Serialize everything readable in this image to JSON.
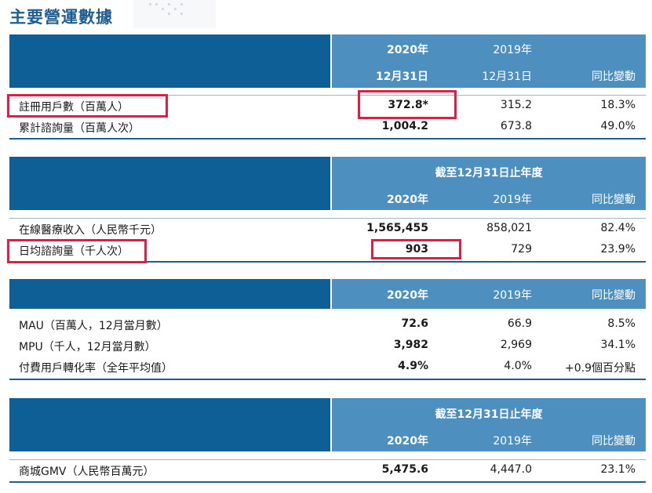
{
  "title": "主要營運數據",
  "colors": {
    "header_dark": "#0d5f95",
    "header_light": "#4d8fbf",
    "title": "#1f5e94",
    "highlight": "#e01e45"
  },
  "table1": {
    "header": {
      "y2020_year": "2020年",
      "y2019_year": "2019年",
      "y2020_date": "12月31日",
      "y2019_date": "12月31日",
      "yoy": "同比變動"
    },
    "rows": [
      {
        "label": "註冊用戶數（百萬人）",
        "v2020": "372.8*",
        "v2019": "315.2",
        "yoy": "18.3%"
      },
      {
        "label": "累計諮詢量（百萬人次）",
        "v2020": "1,004.2",
        "v2019": "673.8",
        "yoy": "49.0%"
      }
    ]
  },
  "table2": {
    "header": {
      "period": "截至12月31日止年度",
      "y2020": "2020年",
      "y2019": "2019年",
      "yoy": "同比變動"
    },
    "rows": [
      {
        "label": "在線醫療收入（人民幣千元）",
        "v2020": "1,565,455",
        "v2019": "858,021",
        "yoy": "82.4%"
      },
      {
        "label": "日均諮詢量（千人次）",
        "v2020": "903",
        "v2019": "729",
        "yoy": "23.9%"
      }
    ]
  },
  "table3": {
    "header": {
      "y2020": "2020年",
      "y2019": "2019年",
      "yoy": "同比變動"
    },
    "rows": [
      {
        "label": "MAU（百萬人，12月當月數）",
        "v2020": "72.6",
        "v2019": "66.9",
        "yoy": "8.5%"
      },
      {
        "label": "MPU（千人，12月當月數）",
        "v2020": "3,982",
        "v2019": "2,969",
        "yoy": "34.1%"
      },
      {
        "label": "付費用戶轉化率（全年平均值）",
        "v2020": "4.9%",
        "v2019": "4.0%",
        "yoy": "+0.9個百分點"
      }
    ]
  },
  "table4": {
    "header": {
      "period": "截至12月31日止年度",
      "y2020": "2020年",
      "y2019": "2019年",
      "yoy": "同比變動"
    },
    "rows": [
      {
        "label": "商城GMV（人民幣百萬元）",
        "v2020": "5,475.6",
        "v2019": "4,447.0",
        "yoy": "23.1%"
      }
    ]
  }
}
